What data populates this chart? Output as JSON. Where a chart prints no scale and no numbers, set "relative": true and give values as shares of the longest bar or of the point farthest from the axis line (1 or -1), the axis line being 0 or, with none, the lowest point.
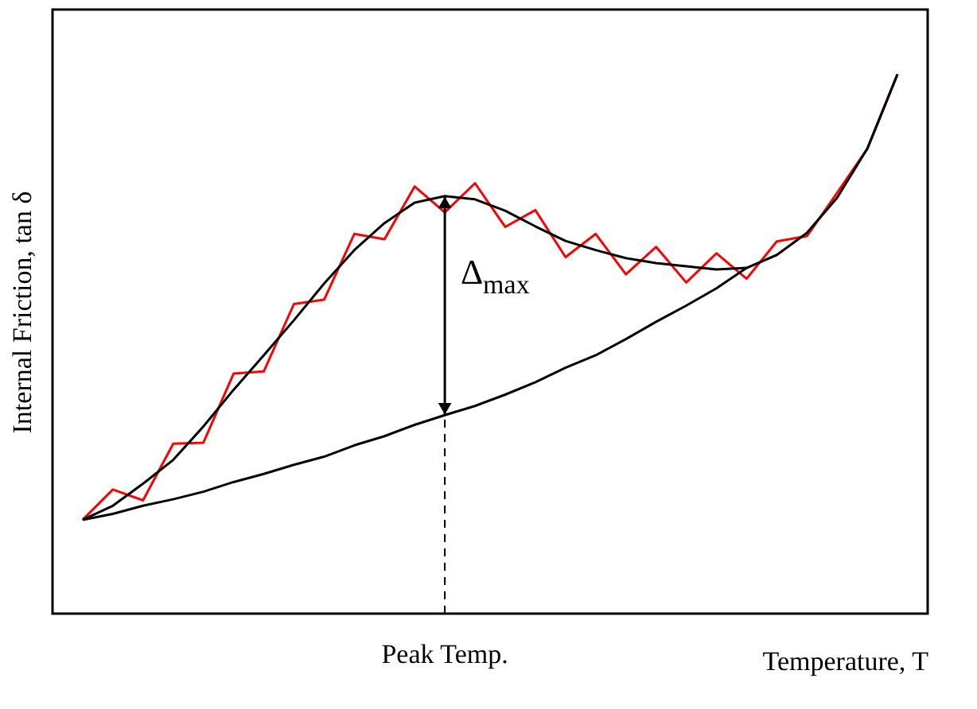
{
  "chart_data": {
    "type": "line",
    "relative": true,
    "xlabel": "Temperature, T",
    "ylabel": "Internal Friction, tan δ",
    "categories": [
      null,
      null,
      null,
      null,
      null,
      null,
      null,
      null,
      null,
      null,
      null,
      null,
      null,
      null,
      null,
      null,
      null,
      null,
      null,
      null,
      null,
      null,
      null,
      null,
      null,
      null,
      null,
      null
    ],
    "marker": "none",
    "line_style": "solid",
    "series": [
      {
        "color": "#ff0000",
        "values": [
          0.174,
          0.23,
          0.21,
          0.315,
          0.317,
          0.445,
          0.449,
          0.574,
          0.582,
          0.704,
          0.694,
          0.792,
          0.744,
          0.798,
          0.717,
          0.748,
          0.661,
          0.704,
          0.629,
          0.68,
          0.614,
          0.668,
          0.621,
          0.69,
          0.7,
          0.78,
          0.862,
          1
        ]
      },
      {
        "color": "#000000",
        "values": [
          0.174,
          0.2,
          0.241,
          0.285,
          0.347,
          0.415,
          0.479,
          0.544,
          0.612,
          0.674,
          0.724,
          0.762,
          0.774,
          0.768,
          0.747,
          0.718,
          0.691,
          0.674,
          0.659,
          0.65,
          0.644,
          0.638,
          0.641,
          0.665,
          0.706,
          0.771,
          0.862,
          1
        ]
      },
      {
        "color": "#000000",
        "values": [
          0.174,
          0.185,
          0.2,
          0.212,
          0.226,
          0.244,
          0.259,
          0.276,
          0.291,
          0.312,
          0.329,
          0.35,
          0.368,
          0.385,
          0.406,
          0.429,
          0.456,
          0.479,
          0.509,
          0.541,
          0.571,
          0.603,
          0.641,
          null,
          null,
          null,
          null,
          null
        ]
      }
    ],
    "annotations": [
      "Δ$_{max}$",
      "Peak Temp."
    ]
  }
}
